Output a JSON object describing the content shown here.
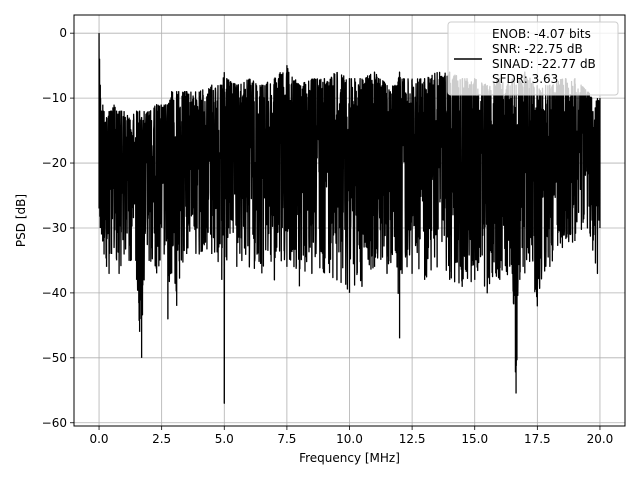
{
  "chart_data": {
    "type": "line",
    "title": "",
    "xlabel": "Frequency [MHz]",
    "ylabel": "PSD [dB]",
    "xlim": [
      -1.0,
      21.0
    ],
    "ylim": [
      -60.5,
      2.8
    ],
    "xticks": [
      0.0,
      2.5,
      5.0,
      7.5,
      10.0,
      12.5,
      15.0,
      17.5,
      20.0
    ],
    "xtick_labels": [
      "0.0",
      "2.5",
      "5.0",
      "7.5",
      "10.0",
      "12.5",
      "15.0",
      "17.5",
      "20.0"
    ],
    "yticks": [
      0,
      -10,
      -20,
      -30,
      -40,
      -50,
      -60
    ],
    "ytick_labels": [
      "0",
      "−10",
      "−20",
      "−30",
      "−40",
      "−50",
      "−60"
    ],
    "grid": true,
    "legend_position": "upper right",
    "legend_entries": [
      "ENOB: -4.07 bits\nSNR: -22.75 dB\nSINAD: -22.77 dB\nSFDR: 3.63"
    ],
    "series": [
      {
        "color": "#000000",
        "x": [
          0.0,
          0.02,
          0.05,
          0.1,
          0.15,
          0.2,
          0.3,
          0.4,
          0.5,
          0.6,
          0.7,
          0.8,
          1.0,
          1.2,
          1.5,
          1.62,
          1.7,
          1.8,
          2.0,
          2.3,
          2.6,
          2.75,
          2.9,
          3.1,
          3.5,
          4.0,
          4.5,
          4.9,
          5.0,
          5.1,
          5.5,
          6.0,
          6.5,
          7.0,
          7.5,
          8.0,
          8.5,
          9.0,
          9.5,
          10.0,
          10.5,
          11.0,
          11.5,
          11.9,
          12.0,
          12.1,
          12.5,
          13.0,
          13.5,
          14.0,
          14.5,
          15.0,
          15.5,
          16.0,
          16.5,
          16.65,
          16.8,
          17.0,
          17.5,
          18.0,
          18.5,
          19.0,
          19.5,
          19.9,
          20.0
        ],
        "y_max": [
          0,
          -4,
          -8,
          -12,
          -11,
          -12,
          -13,
          -12,
          -12,
          -11,
          -12,
          -12,
          -12,
          -13,
          -12,
          -12,
          -13,
          -12,
          -12,
          -11,
          -11,
          -11,
          -9,
          -9,
          -9,
          -9,
          -8,
          -8,
          -6,
          -7,
          -8,
          -7,
          -8,
          -7,
          -5,
          -8,
          -7,
          -7,
          -6,
          -7,
          -7,
          -6,
          -8,
          -8,
          -6,
          -7,
          -7,
          -7,
          -6,
          -6,
          -7,
          -7,
          -8,
          -7,
          -7,
          -8,
          -7,
          -6,
          -8,
          -8,
          -7,
          -7,
          -9,
          -10,
          -10
        ],
        "y_min": [
          -27,
          -27,
          -30,
          -31,
          -32,
          -34,
          -36,
          -37,
          -34,
          -33,
          -35,
          -37,
          -34,
          -35,
          -38,
          -46,
          -50,
          -38,
          -35,
          -37,
          -34,
          -44,
          -37,
          -42,
          -34,
          -34,
          -34,
          -38,
          -57,
          -35,
          -36,
          -36,
          -37,
          -38,
          -36,
          -39,
          -37,
          -37,
          -38,
          -40,
          -39,
          -36,
          -37,
          -36,
          -47,
          -37,
          -37,
          -38,
          -36,
          -38,
          -39,
          -38,
          -40,
          -38,
          -37,
          -55.5,
          -38,
          -37,
          -42,
          -36,
          -33,
          -32,
          -30,
          -37,
          -30
        ]
      }
    ]
  }
}
